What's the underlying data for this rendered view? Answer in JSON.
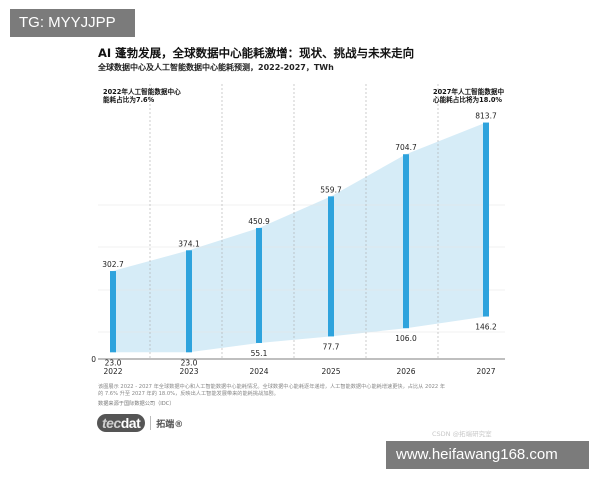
{
  "overlay_tags": {
    "top": "TG: MYYJJPP",
    "bottom": "www.heifawang168.com"
  },
  "chart_data": {
    "type": "bar",
    "title": "AI 蓬勃发展，全球数据中心能耗激增：现状、挑战与未来走向",
    "subtitle": "全球数据中心及人工智能数据中心能耗预测，2022-2027，TWh",
    "categories": [
      "2022",
      "2023",
      "2024",
      "2025",
      "2026",
      "2027"
    ],
    "series": [
      {
        "values": [
          302.7,
          374.1,
          450.9,
          559.7,
          704.7,
          813.7
        ]
      },
      {
        "values": [
          23.0,
          23.0,
          55.1,
          77.7,
          106.0,
          146.2
        ]
      }
    ],
    "value_labels_top": [
      "302.7",
      "374.1",
      "450.9",
      "559.7",
      "704.7",
      "813.7"
    ],
    "value_labels_bottom": [
      "23.0",
      "23.0",
      "55.1",
      "77.7",
      "106.0",
      "146.2"
    ],
    "y_tick_labels": [
      "0"
    ],
    "ylim": [
      0,
      850
    ],
    "grid": "vertical dashed separators",
    "annotations": {
      "left": "2022年人工智能数据中心能耗占比为7.6%",
      "right": "2027年人工智能数据中心能耗占比将为18.0%"
    },
    "colors": {
      "bar": "#2ea3dd",
      "band": "#d6ecf7",
      "axis": "#555555",
      "grid": "#aaaaaa"
    }
  },
  "footer": {
    "line1": "该图展示 2022 - 2027 年全球数据中心和人工智能数据中心能耗情况。全球数据中心能耗逐年递增，人工智能数据中心能耗增速更快，占比从 2022 年",
    "line2": "的 7.6% 升至 2027 年的 18.0%，反映出人工智能发展带来的能耗挑战加剧。",
    "source": "数据来源于国际数据公司（IDC）"
  },
  "logo": {
    "mark_a": "tec",
    "mark_b": "dat",
    "name": "拓端®"
  },
  "watermark": "CSDN @拓端研究室"
}
